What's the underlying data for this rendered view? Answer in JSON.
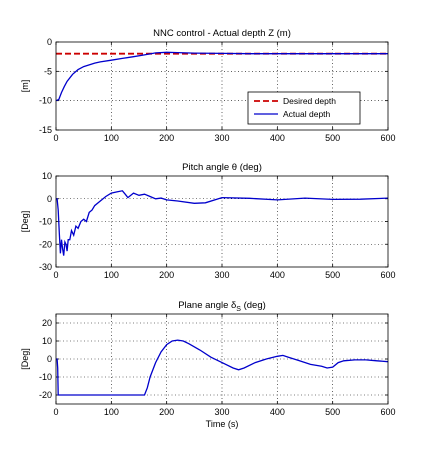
{
  "chart_data": [
    {
      "type": "line",
      "title": "NNC control - Actual depth Z (m)",
      "ylabel": "[m]",
      "xlabel": "",
      "xlim": [
        0,
        600
      ],
      "ylim": [
        -15,
        0
      ],
      "xticks": [
        0,
        100,
        200,
        300,
        400,
        500,
        600
      ],
      "yticks": [
        0,
        -5,
        -10,
        -15
      ],
      "grid": true,
      "legend": "bottom-right",
      "series": [
        {
          "name": "Desired depth",
          "color": "#cc0000",
          "style": "dashed",
          "x": [
            0,
            600
          ],
          "y": [
            -2,
            -2
          ]
        },
        {
          "name": "Actual depth",
          "color": "#0000cc",
          "style": "solid",
          "x": [
            0,
            5,
            10,
            15,
            20,
            30,
            40,
            50,
            60,
            70,
            80,
            100,
            120,
            140,
            160,
            180,
            200,
            220,
            250,
            300,
            350,
            400,
            450,
            500,
            550,
            600
          ],
          "y": [
            -10,
            -9.8,
            -8.6,
            -7.6,
            -6.7,
            -5.5,
            -4.7,
            -4.2,
            -3.9,
            -3.6,
            -3.4,
            -3.1,
            -2.8,
            -2.5,
            -2.2,
            -1.85,
            -1.75,
            -1.8,
            -1.9,
            -1.95,
            -2.0,
            -2.0,
            -2.0,
            -2.0,
            -2.0,
            -2.0
          ]
        }
      ]
    },
    {
      "type": "line",
      "title": "Pitch angle θ (deg)",
      "ylabel": "[Deg]",
      "xlabel": "",
      "xlim": [
        0,
        600
      ],
      "ylim": [
        -30,
        10
      ],
      "xticks": [
        0,
        100,
        200,
        300,
        400,
        500,
        600
      ],
      "yticks": [
        10,
        0,
        -10,
        -20,
        -30
      ],
      "grid": true,
      "series": [
        {
          "color": "#0000cc",
          "style": "solid",
          "x": [
            0,
            2,
            4,
            6,
            8,
            10,
            12,
            14,
            16,
            18,
            20,
            22,
            25,
            28,
            32,
            36,
            40,
            45,
            50,
            55,
            60,
            65,
            70,
            80,
            90,
            100,
            110,
            120,
            125,
            130,
            140,
            150,
            160,
            170,
            180,
            190,
            200,
            220,
            250,
            270,
            300,
            350,
            400,
            450,
            500,
            550,
            600
          ],
          "y": [
            0,
            0,
            -5,
            -15,
            -24,
            -18,
            -22,
            -25,
            -19,
            -20,
            -23,
            -18,
            -18,
            -14,
            -16,
            -12,
            -13,
            -10,
            -9,
            -10,
            -6,
            -5,
            -3,
            -1,
            1,
            2.5,
            3,
            3.5,
            2,
            0.5,
            2.5,
            1.5,
            2,
            1,
            0,
            0.3,
            -0.5,
            -1,
            -2,
            -1.8,
            0.5,
            0.2,
            -0.5,
            0.3,
            -0.3,
            -0.2,
            0.3
          ]
        }
      ]
    },
    {
      "type": "line",
      "title": "Plane angle δS (deg)",
      "ylabel": "[Deg]",
      "xlabel": "Time (s)",
      "xlim": [
        0,
        600
      ],
      "ylim": [
        -25,
        25
      ],
      "xticks": [
        0,
        100,
        200,
        300,
        400,
        500,
        600
      ],
      "yticks": [
        20,
        10,
        0,
        -10,
        -20
      ],
      "grid": true,
      "series": [
        {
          "color": "#0000cc",
          "style": "solid",
          "x": [
            0,
            2,
            3,
            4,
            5,
            6,
            160,
            165,
            170,
            180,
            190,
            200,
            210,
            220,
            230,
            240,
            260,
            280,
            300,
            320,
            330,
            340,
            360,
            380,
            400,
            410,
            420,
            440,
            460,
            480,
            490,
            500,
            510,
            520,
            540,
            560,
            580,
            600
          ],
          "y": [
            0,
            0,
            -5,
            -20,
            -20,
            -20,
            -20,
            -16,
            -10,
            -2,
            4,
            8,
            10,
            10.5,
            10,
            8.5,
            5,
            1,
            -2,
            -5,
            -6,
            -5,
            -2,
            0,
            1.5,
            2,
            1,
            -1,
            -3,
            -4,
            -5,
            -4.5,
            -2,
            -1,
            -0.5,
            -0.5,
            -1,
            -1.5
          ]
        }
      ]
    }
  ]
}
